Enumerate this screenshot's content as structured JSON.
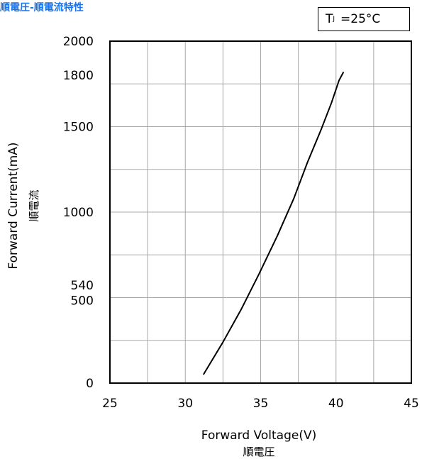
{
  "title": "順電圧-順電流特性",
  "condition": {
    "symbol": "T",
    "subscript": "J",
    "text": "=25°C"
  },
  "chart_data": {
    "type": "line",
    "xlabel": "Forward Voltage(V)",
    "xlabel_sub": "順電圧",
    "ylabel": "Forward Current(mA)",
    "ylabel_sub": "順電流",
    "xlim": [
      25,
      45
    ],
    "ylim": [
      0,
      2000
    ],
    "x_ticks": [
      25,
      30,
      35,
      40,
      45
    ],
    "y_ticks": [
      0,
      500,
      540,
      1000,
      1500,
      1800,
      2000
    ],
    "grid": true,
    "series": [
      {
        "x": [
          31.2,
          32.5,
          33.7,
          34.9,
          36.1,
          37.2,
          38.1,
          39.0,
          39.7,
          40.2,
          40.5
        ],
        "y": [
          50,
          240,
          430,
          640,
          860,
          1080,
          1290,
          1480,
          1640,
          1770,
          1820
        ]
      }
    ]
  }
}
